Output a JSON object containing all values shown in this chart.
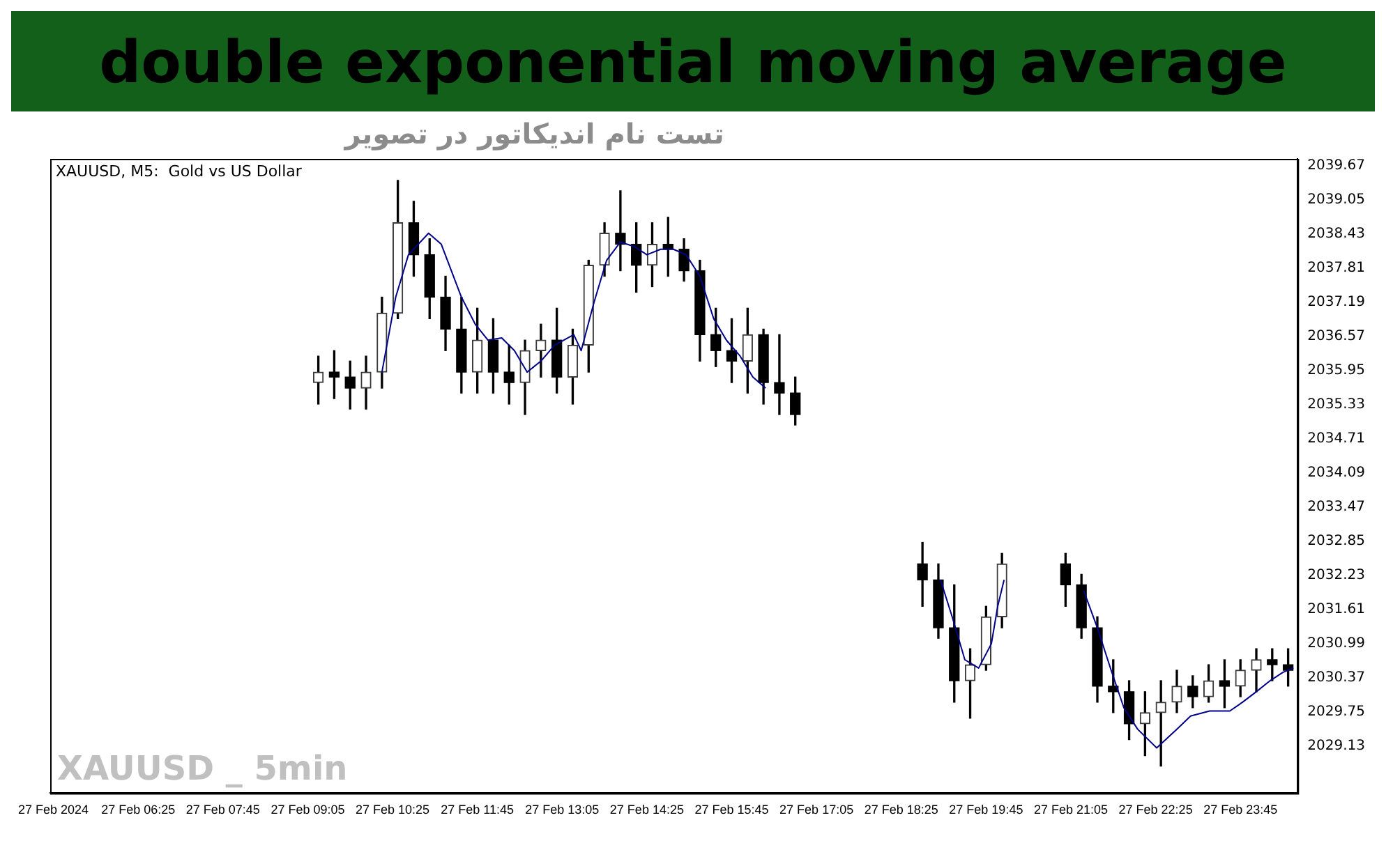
{
  "chart_data": {
    "type": "candlestick",
    "title": "double exponential moving average",
    "subtitle": "XAUUSD, M5:  Gold vs US Dollar",
    "annotations": [
      "تست نام اندیکاتور در تصویر",
      "XAUUSD _ 5min"
    ],
    "x": [
      "2024-02-27T09:15",
      "2024-02-27T09:30",
      "2024-02-27T09:45",
      "2024-02-27T10:00",
      "2024-02-27T10:15",
      "2024-02-27T10:30",
      "2024-02-27T10:45",
      "2024-02-27T11:00",
      "2024-02-27T11:15",
      "2024-02-27T11:30",
      "2024-02-27T11:45",
      "2024-02-27T12:00",
      "2024-02-27T12:15",
      "2024-02-27T12:30",
      "2024-02-27T12:45",
      "2024-02-27T13:00",
      "2024-02-27T13:15",
      "2024-02-27T13:30",
      "2024-02-27T13:45",
      "2024-02-27T14:00",
      "2024-02-27T14:15",
      "2024-02-27T14:30",
      "2024-02-27T14:45",
      "2024-02-27T15:00",
      "2024-02-27T15:15",
      "2024-02-27T15:30",
      "2024-02-27T15:45",
      "2024-02-27T16:00",
      "2024-02-27T16:15",
      "2024-02-27T16:30",
      "2024-02-27T16:45",
      "2024-02-27T18:45",
      "2024-02-27T19:00",
      "2024-02-27T19:15",
      "2024-02-27T19:30",
      "2024-02-27T19:45",
      "2024-02-27T20:00",
      "2024-02-27T21:00",
      "2024-02-27T21:15",
      "2024-02-27T21:30",
      "2024-02-27T21:45",
      "2024-02-27T22:00",
      "2024-02-27T22:15",
      "2024-02-27T22:30",
      "2024-02-27T22:45",
      "2024-02-27T23:00",
      "2024-02-27T23:15",
      "2024-02-27T23:30",
      "2024-02-27T23:45",
      "2024-02-28T00:00",
      "2024-02-28T00:15",
      "2024-02-28T00:30"
    ],
    "ohlc": [
      [
        2035.73,
        2036.21,
        2035.34,
        2035.92
      ],
      [
        2035.92,
        2036.31,
        2035.44,
        2035.83
      ],
      [
        2035.83,
        2036.12,
        2035.25,
        2035.63
      ],
      [
        2035.63,
        2036.21,
        2035.25,
        2035.92
      ],
      [
        2035.92,
        2037.28,
        2035.63,
        2036.99
      ],
      [
        2036.99,
        2039.4,
        2036.89,
        2038.63
      ],
      [
        2038.63,
        2039.02,
        2037.66,
        2038.05
      ],
      [
        2038.05,
        2038.34,
        2036.89,
        2037.28
      ],
      [
        2037.28,
        2037.66,
        2036.31,
        2036.7
      ],
      [
        2036.7,
        2037.28,
        2035.54,
        2035.92
      ],
      [
        2035.92,
        2037.08,
        2035.54,
        2036.5
      ],
      [
        2036.5,
        2036.89,
        2035.54,
        2035.92
      ],
      [
        2035.92,
        2036.41,
        2035.34,
        2035.73
      ],
      [
        2035.73,
        2036.5,
        2035.15,
        2036.31
      ],
      [
        2036.31,
        2036.79,
        2035.83,
        2036.5
      ],
      [
        2036.5,
        2037.08,
        2035.54,
        2035.83
      ],
      [
        2035.83,
        2036.7,
        2035.34,
        2036.41
      ],
      [
        2036.41,
        2037.95,
        2035.92,
        2037.86
      ],
      [
        2037.86,
        2038.63,
        2037.66,
        2038.44
      ],
      [
        2038.44,
        2039.21,
        2037.76,
        2038.24
      ],
      [
        2038.24,
        2038.63,
        2037.37,
        2037.86
      ],
      [
        2037.86,
        2038.63,
        2037.47,
        2038.24
      ],
      [
        2038.24,
        2038.73,
        2037.66,
        2038.15
      ],
      [
        2038.15,
        2038.34,
        2037.57,
        2037.76
      ],
      [
        2037.76,
        2037.95,
        2036.12,
        2036.6
      ],
      [
        2036.6,
        2037.08,
        2036.02,
        2036.31
      ],
      [
        2036.31,
        2036.89,
        2035.73,
        2036.12
      ],
      [
        2036.12,
        2037.08,
        2035.54,
        2036.6
      ],
      [
        2036.6,
        2036.7,
        2035.34,
        2035.73
      ],
      [
        2035.73,
        2036.6,
        2035.15,
        2035.54
      ],
      [
        2035.54,
        2035.83,
        2034.96,
        2035.15
      ],
      [
        2032.44,
        2032.83,
        2031.67,
        2032.15
      ],
      [
        2032.15,
        2032.44,
        2031.09,
        2031.28
      ],
      [
        2031.28,
        2032.06,
        2029.93,
        2030.32
      ],
      [
        2030.32,
        2030.9,
        2029.64,
        2030.61
      ],
      [
        2030.61,
        2031.67,
        2030.51,
        2031.48
      ],
      [
        2031.48,
        2032.63,
        2031.28,
        2032.44
      ],
      [
        2032.44,
        2032.63,
        2031.67,
        2032.06
      ],
      [
        2032.06,
        2032.25,
        2031.09,
        2031.28
      ],
      [
        2031.28,
        2031.48,
        2029.93,
        2030.22
      ],
      [
        2030.22,
        2030.7,
        2029.74,
        2030.12
      ],
      [
        2030.12,
        2030.32,
        2029.25,
        2029.54
      ],
      [
        2029.54,
        2030.12,
        2028.96,
        2029.74
      ],
      [
        2029.74,
        2030.32,
        2028.77,
        2029.93
      ],
      [
        2029.93,
        2030.51,
        2029.74,
        2030.22
      ],
      [
        2030.22,
        2030.41,
        2029.83,
        2030.03
      ],
      [
        2030.03,
        2030.61,
        2029.93,
        2030.32
      ],
      [
        2030.32,
        2030.7,
        2029.83,
        2030.22
      ],
      [
        2030.22,
        2030.7,
        2030.03,
        2030.51
      ],
      [
        2030.51,
        2030.9,
        2030.12,
        2030.7
      ],
      [
        2030.7,
        2030.9,
        2030.32,
        2030.61
      ],
      [
        2030.61,
        2030.9,
        2030.22,
        2030.51
      ]
    ],
    "series": [
      {
        "type": "line",
        "color": "#00008b",
        "marker": "none",
        "x": [
          "2024-02-27T10:15",
          "2024-02-27T10:28",
          "2024-02-27T10:40",
          "2024-02-27T10:59",
          "2024-02-27T11:11",
          "2024-02-27T11:30",
          "2024-02-27T11:43",
          "2024-02-27T11:55",
          "2024-02-27T12:08",
          "2024-02-27T12:20",
          "2024-02-27T12:32",
          "2024-02-27T12:45",
          "2024-02-27T12:58",
          "2024-02-27T13:16",
          "2024-02-27T13:23",
          "2024-02-27T13:35",
          "2024-02-27T13:47",
          "2024-02-27T14:00",
          "2024-02-27T14:13",
          "2024-02-27T14:25",
          "2024-02-27T14:38",
          "2024-02-27T14:50",
          "2024-02-27T15:02",
          "2024-02-27T15:15",
          "2024-02-27T15:28",
          "2024-02-27T15:40",
          "2024-02-27T15:53",
          "2024-02-27T16:05",
          "2024-02-27T16:17",
          "2024-02-27T17:30",
          "2024-02-27T19:02",
          "2024-02-27T19:13",
          "2024-02-27T19:25",
          "2024-02-27T19:38",
          "2024-02-27T19:50",
          "2024-02-27T19:56",
          "2024-02-27T20:02",
          "2024-02-27T20:30",
          "2024-02-27T21:17",
          "2024-02-27T21:30",
          "2024-02-27T21:43",
          "2024-02-27T21:55",
          "2024-02-27T22:08",
          "2024-02-27T22:26",
          "2024-02-27T22:45",
          "2024-02-27T22:58",
          "2024-02-27T23:16",
          "2024-02-27T23:35",
          "2024-02-27T23:47",
          "2024-02-28T00:00",
          "2024-02-28T00:13",
          "2024-02-28T00:25",
          "2024-02-28T00:35"
        ],
        "values": [
          2035.92,
          2037.28,
          2038.05,
          2038.44,
          2038.24,
          2037.28,
          2036.79,
          2036.5,
          2036.54,
          2036.31,
          2035.92,
          2036.12,
          2036.41,
          2036.6,
          2036.31,
          2037.18,
          2037.95,
          2038.28,
          2038.2,
          2038.05,
          2038.15,
          2038.15,
          2038.05,
          2037.66,
          2036.89,
          2036.5,
          2036.21,
          2035.83,
          2035.63,
          null,
          2032.15,
          2031.48,
          2030.7,
          2030.55,
          2030.99,
          2031.67,
          2032.15,
          null,
          2031.96,
          2031.28,
          2030.51,
          2029.83,
          2029.44,
          2029.1,
          2029.44,
          2029.68,
          2029.77,
          2029.77,
          2029.93,
          2030.12,
          2030.32,
          2030.47,
          2030.55
        ]
      }
    ],
    "xlim": [
      "2024-02-27T05:02",
      "2024-02-28T00:39"
    ],
    "xticks": [
      {
        "value": "2024-02-27T05:05",
        "label": "27 Feb 2024"
      },
      {
        "value": "2024-02-27T06:25",
        "label": "27 Feb 06:25"
      },
      {
        "value": "2024-02-27T07:45",
        "label": "27 Feb 07:45"
      },
      {
        "value": "2024-02-27T09:05",
        "label": "27 Feb 09:05"
      },
      {
        "value": "2024-02-27T10:25",
        "label": "27 Feb 10:25"
      },
      {
        "value": "2024-02-27T11:45",
        "label": "27 Feb 11:45"
      },
      {
        "value": "2024-02-27T13:05",
        "label": "27 Feb 13:05"
      },
      {
        "value": "2024-02-27T14:25",
        "label": "27 Feb 14:25"
      },
      {
        "value": "2024-02-27T15:45",
        "label": "27 Feb 15:45"
      },
      {
        "value": "2024-02-27T17:05",
        "label": "27 Feb 17:05"
      },
      {
        "value": "2024-02-27T18:25",
        "label": "27 Feb 18:25"
      },
      {
        "value": "2024-02-27T19:45",
        "label": "27 Feb 19:45"
      },
      {
        "value": "2024-02-27T21:05",
        "label": "27 Feb 21:05"
      },
      {
        "value": "2024-02-27T22:25",
        "label": "27 Feb 22:25"
      },
      {
        "value": "2024-02-27T23:45",
        "label": "27 Feb 23:45"
      }
    ],
    "ylim": [
      2028.28,
      2039.79
    ],
    "yticks": [
      2029.13,
      2029.75,
      2030.37,
      2030.99,
      2031.61,
      2032.23,
      2032.85,
      2033.47,
      2034.09,
      2034.71,
      2035.33,
      2035.95,
      2036.57,
      2037.19,
      2037.81,
      2038.43,
      2039.05,
      2039.67
    ]
  }
}
